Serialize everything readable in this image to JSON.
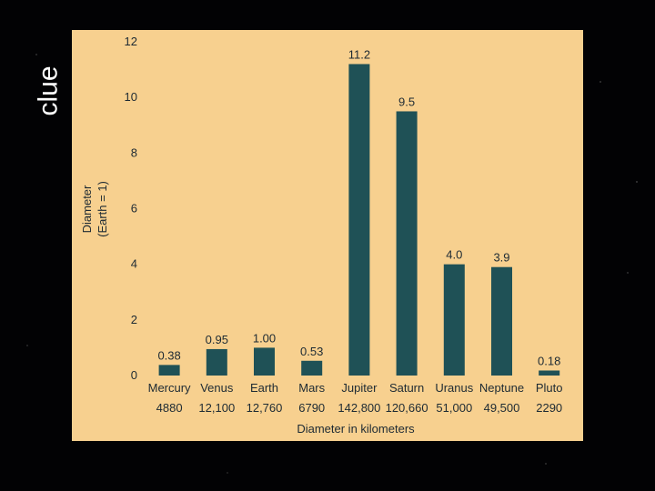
{
  "slide": {
    "title": "clue"
  },
  "chart_data": {
    "type": "bar",
    "categories": [
      "Mercury",
      "Venus",
      "Earth",
      "Mars",
      "Jupiter",
      "Saturn",
      "Uranus",
      "Neptune",
      "Pluto"
    ],
    "values": [
      0.38,
      0.95,
      1.0,
      0.53,
      11.2,
      9.5,
      4.0,
      3.9,
      0.18
    ],
    "value_labels": [
      "0.38",
      "0.95",
      "1.00",
      "0.53",
      "11.2",
      "9.5",
      "4.0",
      "3.9",
      "0.18"
    ],
    "diameters_km": [
      "4880",
      "12,100",
      "12,760",
      "6790",
      "142,800",
      "120,660",
      "51,000",
      "49,500",
      "2290"
    ],
    "ylabel_line1": "Diameter",
    "ylabel_line2": "(Earth = 1)",
    "xlabel": "Diameter in kilometers",
    "ylim": [
      0,
      12
    ],
    "yticks": [
      "0",
      "2",
      "4",
      "6",
      "8",
      "10",
      "12"
    ],
    "grid": false,
    "bar_color": "#1f5156",
    "panel_color": "#f7d08f"
  }
}
